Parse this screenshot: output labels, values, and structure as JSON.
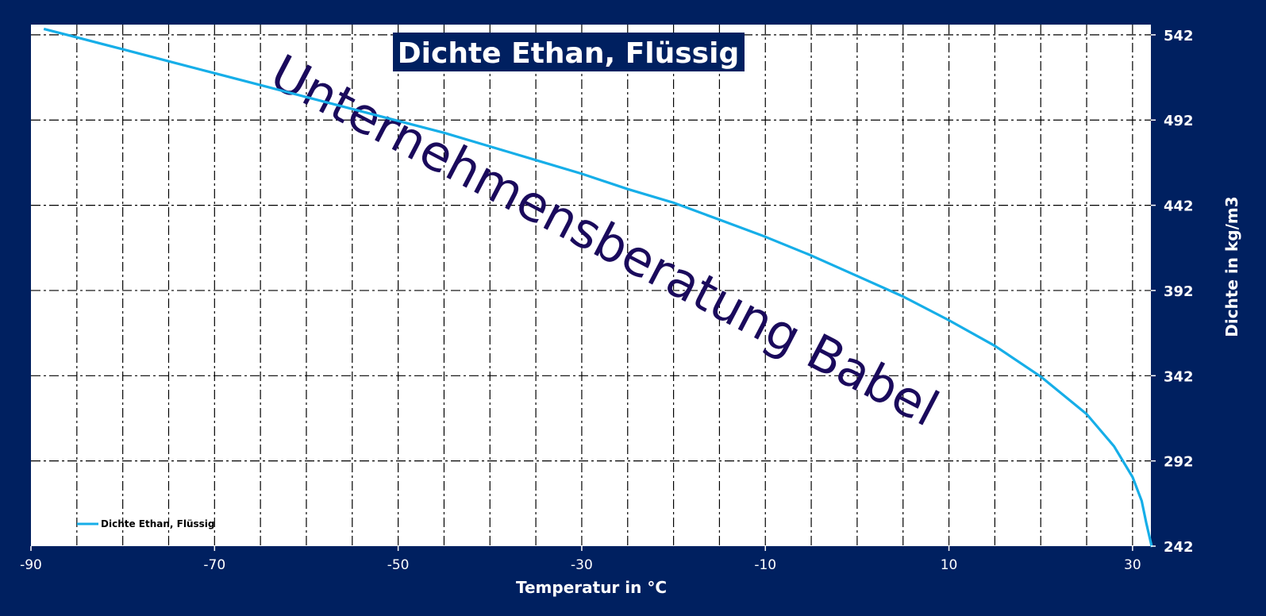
{
  "colors": {
    "frame": "#002060",
    "plot_background": "#ffffff",
    "series_line": "#16aee8",
    "grid": "#000000",
    "watermark": "#1a0a5c",
    "title_box": "#002060",
    "title_text": "#ffffff",
    "axis_text": "#ffffff"
  },
  "chart_data": {
    "type": "line",
    "title": "Dichte Ethan, Flüssig",
    "xlabel": "Temperatur  in °C",
    "ylabel": "Dichte  in kg/m3",
    "xlim": [
      -90,
      32
    ],
    "ylim": [
      242,
      548
    ],
    "x_ticks": [
      -90,
      -70,
      -50,
      -30,
      -10,
      10,
      30
    ],
    "y_ticks": [
      242,
      292,
      342,
      392,
      442,
      492,
      542
    ],
    "y_axis_side": "right",
    "grid": true,
    "grid_style": "dash-dot",
    "legend_placement": "bottom-left",
    "watermark": "Unternehmensberatung Babel",
    "series": [
      {
        "name": "Dichte Ethan, Flüssig",
        "x": [
          -88.6,
          -85,
          -80,
          -75,
          -70,
          -65,
          -60,
          -55,
          -50,
          -45,
          -40,
          -35,
          -30,
          -25,
          -20,
          -15,
          -10,
          -5,
          0,
          5,
          10,
          15,
          20,
          25,
          28,
          30,
          31,
          31.5,
          32.1
        ],
        "y": [
          545.5,
          540.5,
          533.5,
          526.5,
          519.5,
          512.5,
          505.5,
          498.5,
          491.5,
          484.5,
          476.5,
          468.5,
          460.5,
          451.5,
          443.5,
          433.5,
          423.5,
          412.5,
          400.5,
          388.5,
          374.5,
          359.5,
          341.5,
          319.5,
          300.5,
          282.5,
          268.5,
          255.5,
          241.5
        ]
      }
    ]
  }
}
